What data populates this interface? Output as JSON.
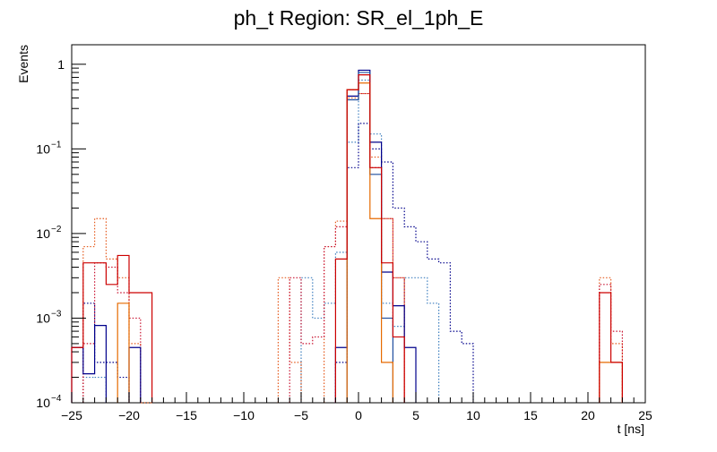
{
  "chart_data": {
    "type": "histogram",
    "title": "ph_t Region: SR_el_1ph_E",
    "xlabel": "t [ns]",
    "ylabel": "Events",
    "xlim": [
      -25,
      25
    ],
    "ylim": [
      0.0001,
      1.7
    ],
    "yscale": "log",
    "bin_width": 1,
    "x_ticks": [
      -25,
      -20,
      -15,
      -10,
      -5,
      0,
      5,
      10,
      15,
      20,
      25
    ],
    "y_ticks": [
      {
        "value": 0.0001,
        "base": "10",
        "exp": "-4"
      },
      {
        "value": 0.001,
        "base": "10",
        "exp": "-3"
      },
      {
        "value": 0.01,
        "base": "10",
        "exp": "-2"
      },
      {
        "value": 0.1,
        "base": "10",
        "exp": "-1"
      },
      {
        "value": 1,
        "base": "1",
        "exp": ""
      }
    ],
    "grid": false,
    "series": [
      {
        "color": "#3e7fbf",
        "style": "dotted",
        "bins": [
          [
            -24,
            0.0002
          ],
          [
            -23,
            0.0002
          ],
          [
            -5,
            0.003
          ],
          [
            -4,
            0.001
          ],
          [
            -3,
            0.0015
          ],
          [
            -2,
            0.006
          ],
          [
            -1,
            0.12
          ],
          [
            0,
            0.65
          ],
          [
            1,
            0.15
          ],
          [
            2,
            0.0015
          ],
          [
            3,
            0.0008
          ],
          [
            4,
            0.003
          ],
          [
            5,
            0.003
          ],
          [
            6,
            0.0015
          ]
        ]
      },
      {
        "color": "#00008b",
        "style": "dotted",
        "bins": [
          [
            -24,
            0.0015
          ],
          [
            -23,
            0.0003
          ],
          [
            -22,
            0.0003
          ],
          [
            -21,
            0.0002
          ],
          [
            -2,
            0.0003
          ],
          [
            -1,
            0.06
          ],
          [
            0,
            0.2
          ],
          [
            1,
            0.1
          ],
          [
            2,
            0.07
          ],
          [
            3,
            0.02
          ],
          [
            4,
            0.012
          ],
          [
            5,
            0.008
          ],
          [
            6,
            0.005
          ],
          [
            7,
            0.0045
          ],
          [
            8,
            0.0007
          ],
          [
            9,
            0.0005
          ]
        ]
      },
      {
        "color": "#e55b1e",
        "style": "dotted",
        "bins": [
          [
            -24,
            0.007
          ],
          [
            -23,
            0.015
          ],
          [
            -22,
            0.005
          ],
          [
            -21,
            0.003
          ],
          [
            -20,
            0.0005
          ],
          [
            -19,
            0.0001
          ],
          [
            -7,
            0.003
          ],
          [
            -6,
            0.0003
          ],
          [
            -3,
            0.007
          ],
          [
            -2,
            0.014
          ],
          [
            -1,
            0.4
          ],
          [
            0,
            0.45
          ],
          [
            1,
            0.08
          ],
          [
            2,
            0.015
          ],
          [
            3,
            0.003
          ],
          [
            21,
            0.003
          ],
          [
            22,
            0.0005
          ]
        ]
      },
      {
        "color": "#c8102e",
        "style": "dotted",
        "bins": [
          [
            -24,
            0.0005
          ],
          [
            -23,
            0.0045
          ],
          [
            -22,
            0.004
          ],
          [
            -21,
            0.002
          ],
          [
            -20,
            0.001
          ],
          [
            -6,
            0.003
          ],
          [
            -5,
            0.0005
          ],
          [
            -4,
            0.0006
          ],
          [
            -3,
            0.007
          ],
          [
            -2,
            0.012
          ],
          [
            -1,
            0.5
          ],
          [
            0,
            0.45
          ],
          [
            1,
            0.06
          ],
          [
            2,
            0.015
          ],
          [
            3,
            0.003
          ],
          [
            21,
            0.0025
          ],
          [
            22,
            0.0007
          ]
        ]
      },
      {
        "color": "#00008b",
        "style": "solid",
        "bins": [
          [
            -25,
            0.00045
          ],
          [
            -24,
            0.00022
          ],
          [
            -23,
            0.00082
          ],
          [
            -20,
            0.00045
          ],
          [
            -2,
            0.00045
          ],
          [
            -1,
            0.42
          ],
          [
            0,
            0.85
          ],
          [
            1,
            0.12
          ],
          [
            2,
            0.0035
          ],
          [
            3,
            0.0014
          ],
          [
            4,
            0.00045
          ]
        ]
      },
      {
        "color": "#1f4e9e",
        "style": "solid",
        "bins": [
          [
            -1,
            0.38
          ],
          [
            0,
            0.8
          ],
          [
            1,
            0.05
          ],
          [
            2,
            0.001
          ]
        ]
      },
      {
        "color": "#e66a00",
        "style": "solid",
        "bins": [
          [
            -21,
            0.0015
          ],
          [
            -1,
            0.5
          ],
          [
            0,
            0.6
          ],
          [
            1,
            0.015
          ],
          [
            2,
            0.0003
          ],
          [
            21,
            0.0003
          ],
          [
            22,
            0.0003
          ]
        ]
      },
      {
        "color": "#cc0000",
        "style": "solid",
        "bins": [
          [
            -25,
            0.00045
          ],
          [
            -24,
            0.0045
          ],
          [
            -23,
            0.0045
          ],
          [
            -22,
            0.0025
          ],
          [
            -21,
            0.0055
          ],
          [
            -20,
            0.002
          ],
          [
            -19,
            0.002
          ],
          [
            -2,
            0.005
          ],
          [
            -1,
            0.5
          ],
          [
            0,
            0.75
          ],
          [
            1,
            0.06
          ],
          [
            2,
            0.0045
          ],
          [
            3,
            0.0006
          ],
          [
            21,
            0.002
          ],
          [
            22,
            0.0003
          ]
        ]
      }
    ]
  }
}
